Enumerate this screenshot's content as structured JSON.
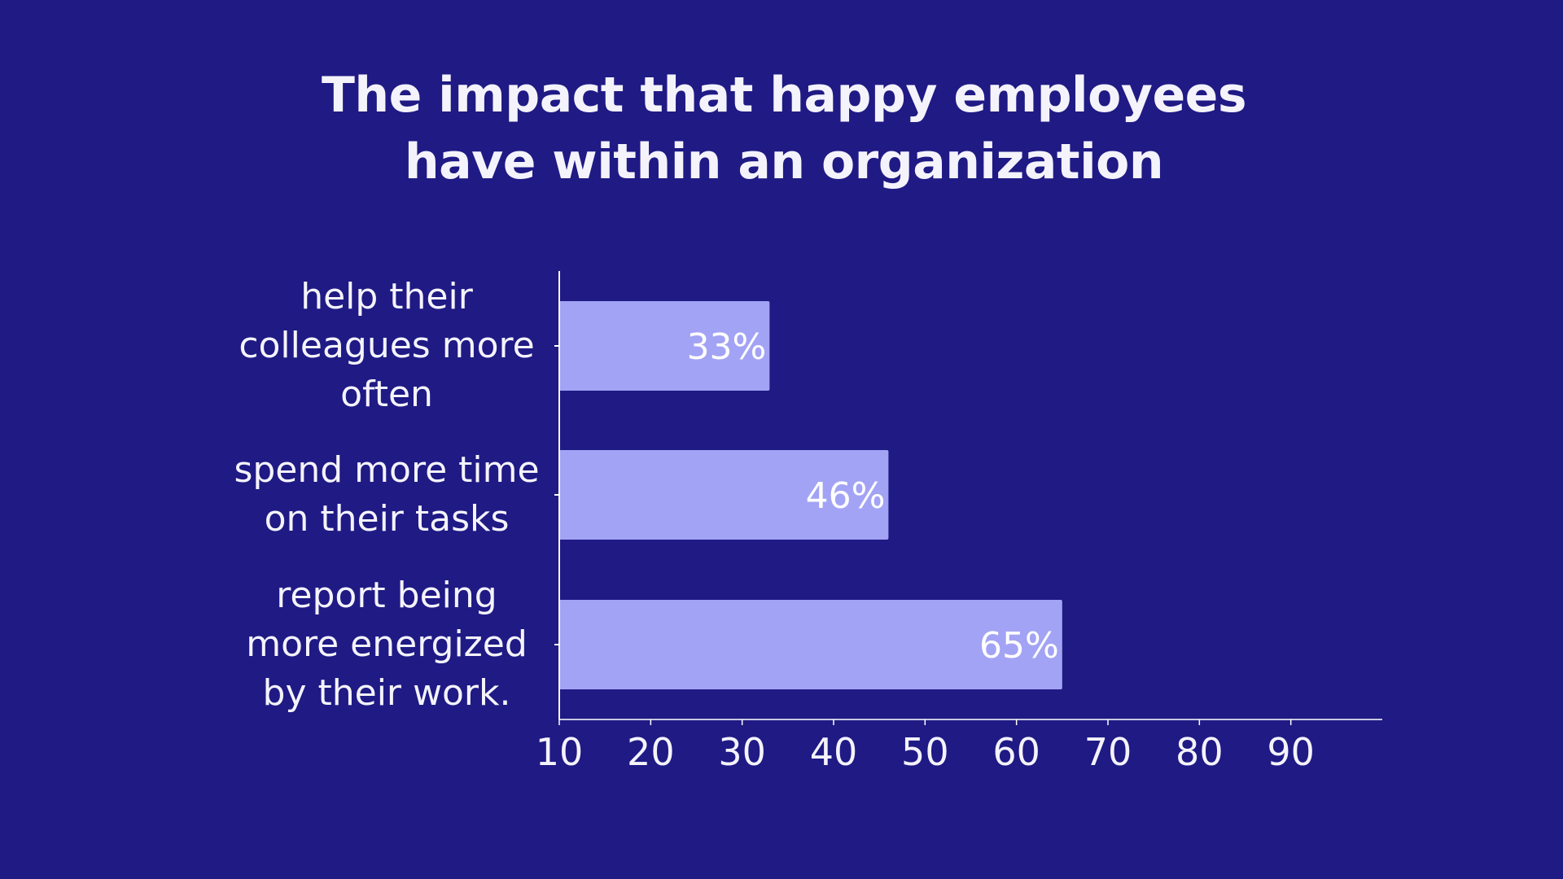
{
  "colors": {
    "background": "#1f1a84",
    "bar": "#a3a3f5",
    "text": "#f4f3fb",
    "axis": "#ffffff"
  },
  "chart_data": {
    "type": "bar",
    "orientation": "horizontal",
    "title_lines": [
      "The impact that happy employees",
      "have within an organization"
    ],
    "categories": [
      "help their colleagues more often",
      "spend more time on their tasks",
      "report being more energized by their work."
    ],
    "category_lines": [
      [
        "help their",
        "colleagues more",
        "often"
      ],
      [
        "spend more time",
        "on their tasks"
      ],
      [
        "report being",
        "more energized",
        "by their work."
      ]
    ],
    "values": [
      33,
      46,
      65
    ],
    "data_labels": [
      "33%",
      "46%",
      "65%"
    ],
    "xlim": [
      10,
      100
    ],
    "xticks": [
      10,
      20,
      30,
      40,
      50,
      60,
      70,
      80,
      90
    ],
    "grid": false,
    "xlabel": "",
    "ylabel": ""
  }
}
